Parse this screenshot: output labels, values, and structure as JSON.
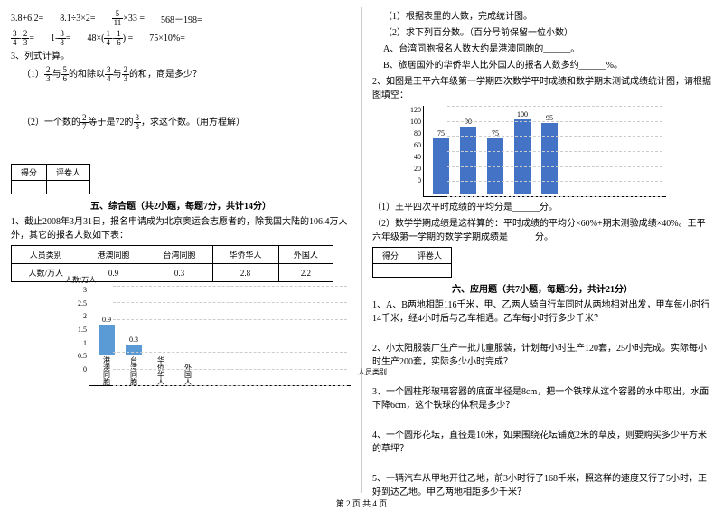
{
  "left": {
    "eq_row1": [
      "3.8+6.2=",
      "8.1÷3×2=",
      "",
      "568－198="
    ],
    "eq_row1_frac": {
      "pre": "",
      "n": "5",
      "d": "11",
      "post": "×33 ="
    },
    "eq_row2": [
      {
        "type": "f2",
        "an": "3",
        "ad": "4",
        "op": "-",
        "bn": "2",
        "bd": "3",
        "post": "="
      },
      {
        "type": "f1",
        "pre": "1-",
        "n": "3",
        "d": "8",
        "post": "="
      },
      {
        "type": "f2p",
        "pre": "48×(",
        "an": "1",
        "ad": "4",
        "op": "-",
        "bn": "1",
        "bd": "6",
        "post": ") ="
      },
      {
        "type": "t",
        "t": "75×10%="
      }
    ],
    "q3": "3、列式计算。",
    "q3_1_pre": "（1）",
    "q3_1_f1n": "2",
    "q3_1_f1d": "3",
    "q3_1_m1": "与",
    "q3_1_f2n": "5",
    "q3_1_f2d": "6",
    "q3_1_m2": "的和除以",
    "q3_1_f3n": "3",
    "q3_1_f3d": "4",
    "q3_1_m3": "与",
    "q3_1_f4n": "2",
    "q3_1_f4d": "3",
    "q3_1_m4": "的和，商是多少？",
    "q3_2_pre": "（2）一个数的",
    "q3_2_f1n": "2",
    "q3_2_f1d": "7",
    "q3_2_m1": "等于是72的",
    "q3_2_f2n": "3",
    "q3_2_f2d": "8",
    "q3_2_m2": "，求这个数。（用方程解）",
    "score_h1": "得分",
    "score_h2": "评卷人",
    "sec5": "五、综合题（共2小题，每题7分，共计14分）",
    "q5_1": "1、截止2008年3月31日，报名申请成为北京奥运会志愿者的，除我国大陆的106.4万人外，其它的报名人数如下表：",
    "tbl_h": [
      "人员类别",
      "港澳同胞",
      "台湾同胞",
      "华侨华人",
      "外国人"
    ],
    "tbl_r": [
      "人数/万人",
      "0.9",
      "0.3",
      "2.8",
      "2.2"
    ],
    "chart": {
      "ylabel": "人数/万人",
      "xlabel": "人员类别",
      "ymax": 3,
      "height": 110,
      "yticks": [
        "3",
        "2.5",
        "2",
        "1.5",
        "1",
        "0.5",
        "0"
      ],
      "bars": [
        {
          "label": "港澳同胞",
          "value": 0.9,
          "show_val": "0.9",
          "color": "#5b9bd5"
        },
        {
          "label": "台湾同胞",
          "value": 0.3,
          "show_val": "0.3",
          "color": "#5b9bd5"
        },
        {
          "label": "华侨华人",
          "value": 0,
          "show_val": "",
          "color": "#5b9bd5"
        },
        {
          "label": "外国人",
          "value": 0,
          "show_val": "",
          "color": "#5b9bd5"
        }
      ]
    }
  },
  "right": {
    "q1_1": "（1）根据表里的人数，完成统计图。",
    "q1_2": "（2）求下列百分数。（百分号前保留一位小数）",
    "q1_a": "A、台湾同胞报名人数大约是港澳同胞的______。",
    "q1_b": "B、旅居国外的华侨华人比外国人的报名人数多约______%。",
    "q2": "2、如图是王平六年级第一学期四次数学平时成绩和数学期末测试成绩统计图，请根据图填空：",
    "chart": {
      "ymax": 120,
      "height": 100,
      "yticks": [
        "120",
        "100",
        "80",
        "60",
        "40",
        "20",
        "0"
      ],
      "bars": [
        {
          "label": "",
          "value": 75,
          "show_val": "75",
          "color": "#4472c4"
        },
        {
          "label": "",
          "value": 90,
          "show_val": "90",
          "color": "#4472c4"
        },
        {
          "label": "",
          "value": 75,
          "show_val": "75",
          "color": "#4472c4"
        },
        {
          "label": "",
          "value": 100,
          "show_val": "100",
          "color": "#4472c4"
        },
        {
          "label": "",
          "value": 95,
          "show_val": "95",
          "color": "#4472c4"
        }
      ]
    },
    "q2_1": "（1）王平四次平时成绩的平均分是______分。",
    "q2_2": "（2）数学学期成绩是这样算的：平时成绩的平均分×60%+期末测验成绩×40%。王平六年级第一学期的数学学期成绩是______分。",
    "score_h1": "得分",
    "score_h2": "评卷人",
    "sec6": "六、应用题（共7小题，每题3分，共计21分）",
    "a1": "1、A、B两地相距116千米，甲、乙两人骑自行车同时从两地相对出发，甲车每小时行14千米，经4小时后与乙车相遇。乙车每小时行多少千米？",
    "a2": "2、小太阳服装厂生产一批儿童服装，计划每小时生产120套，25小时完成。实际每小时生产200套，实际多少小时完成？",
    "a3": "3、一个圆柱形玻璃容器的底面半径是8cm，把一个铁球从这个容器的水中取出，水面下降6cm，这个铁球的体积是多少？",
    "a4": "4、一个圆形花坛，直径是10米，如果围绕花坛铺宽2米的草皮，则要购买多少平方米的草坪？",
    "a5": "5、一辆汽车从甲地开往乙地，前3小时行了168千米，照这样的速度又行了5小时，正好到达乙地。甲乙两地相距多少千米？"
  },
  "footer": "第 2 页 共 4 页"
}
